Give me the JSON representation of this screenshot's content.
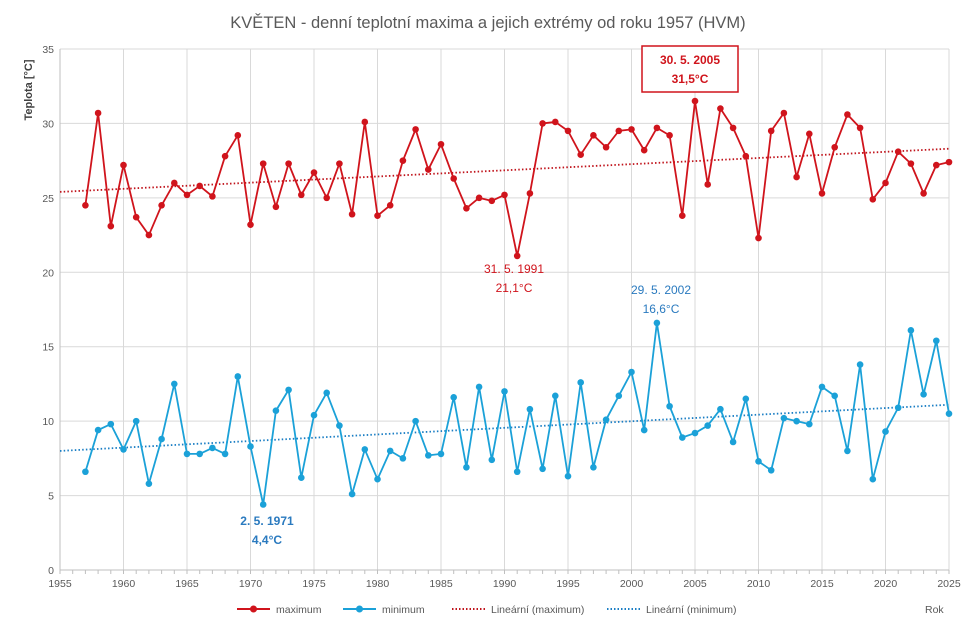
{
  "chart_data": {
    "type": "line",
    "title": "KVĚTEN - denní teplotní maxima a jejich extrémy od roku 1957 (HVM)",
    "ylabel": "Teplota [°C]",
    "xlabel": "Rok",
    "xlim": [
      1955,
      2025
    ],
    "ylim": [
      0,
      35
    ],
    "xticks": [
      1955,
      1960,
      1965,
      1970,
      1975,
      1980,
      1985,
      1990,
      1995,
      2000,
      2005,
      2010,
      2015,
      2020,
      2025
    ],
    "yticks": [
      0,
      5,
      10,
      15,
      20,
      25,
      30,
      35
    ],
    "grid": true,
    "legend_position": "bottom",
    "colors": {
      "maximum": "#d0141c",
      "minimum": "#1ba1d8",
      "annotation_blue": "#2a7abf"
    },
    "series": [
      {
        "name": "maximum",
        "x": [
          1957,
          1958,
          1959,
          1960,
          1961,
          1962,
          1963,
          1964,
          1965,
          1966,
          1967,
          1968,
          1969,
          1970,
          1971,
          1972,
          1973,
          1974,
          1975,
          1976,
          1977,
          1978,
          1979,
          1980,
          1981,
          1982,
          1983,
          1984,
          1985,
          1986,
          1987,
          1988,
          1989,
          1990,
          1991,
          1992,
          1993,
          1994,
          1995,
          1996,
          1997,
          1998,
          1999,
          2000,
          2001,
          2002,
          2003,
          2004,
          2005,
          2006,
          2007,
          2008,
          2009,
          2010,
          2011,
          2012,
          2013,
          2014,
          2015,
          2016,
          2017,
          2018,
          2019,
          2020,
          2021,
          2022,
          2023,
          2024,
          2025
        ],
        "values": [
          24.5,
          30.7,
          23.1,
          27.2,
          23.7,
          22.5,
          24.5,
          26.0,
          25.2,
          25.8,
          25.1,
          27.8,
          29.2,
          23.2,
          27.3,
          24.4,
          27.3,
          25.2,
          26.7,
          25.0,
          27.3,
          23.9,
          30.1,
          23.8,
          24.5,
          27.5,
          29.6,
          26.9,
          28.6,
          26.3,
          24.3,
          25.0,
          24.8,
          25.2,
          21.1,
          25.3,
          30.0,
          30.1,
          29.5,
          27.9,
          29.2,
          28.4,
          29.5,
          29.6,
          28.2,
          29.7,
          29.2,
          23.8,
          31.5,
          25.9,
          31.0,
          29.7,
          27.8,
          22.3,
          29.5,
          30.7,
          26.4,
          29.3,
          25.3,
          28.4,
          30.6,
          29.7,
          24.9,
          26.0,
          28.1,
          27.3,
          25.3,
          27.2,
          27.4
        ]
      },
      {
        "name": "minimum",
        "x": [
          1957,
          1958,
          1959,
          1960,
          1961,
          1962,
          1963,
          1964,
          1965,
          1966,
          1967,
          1968,
          1969,
          1970,
          1971,
          1972,
          1973,
          1974,
          1975,
          1976,
          1977,
          1978,
          1979,
          1980,
          1981,
          1982,
          1983,
          1984,
          1985,
          1986,
          1987,
          1988,
          1989,
          1990,
          1991,
          1992,
          1993,
          1994,
          1995,
          1996,
          1997,
          1998,
          1999,
          2000,
          2001,
          2002,
          2003,
          2004,
          2005,
          2006,
          2007,
          2008,
          2009,
          2010,
          2011,
          2012,
          2013,
          2014,
          2015,
          2016,
          2017,
          2018,
          2019,
          2020,
          2021,
          2022,
          2023,
          2024,
          2025
        ],
        "values": [
          6.6,
          9.4,
          9.8,
          8.1,
          10.0,
          5.8,
          8.8,
          12.5,
          7.8,
          7.8,
          8.2,
          7.8,
          13.0,
          8.3,
          4.4,
          10.7,
          12.1,
          6.2,
          10.4,
          11.9,
          9.7,
          5.1,
          8.1,
          6.1,
          8.0,
          7.5,
          10.0,
          7.7,
          7.8,
          11.6,
          6.9,
          12.3,
          7.4,
          12.0,
          6.6,
          10.8,
          6.8,
          11.7,
          6.3,
          12.6,
          6.9,
          10.1,
          11.7,
          13.3,
          9.4,
          16.6,
          11.0,
          8.9,
          9.2,
          9.7,
          10.8,
          8.6,
          11.5,
          7.3,
          6.7,
          10.2,
          10.0,
          9.8,
          12.3,
          11.7,
          8.0,
          13.8,
          6.1,
          9.3,
          10.9,
          16.1,
          11.8,
          15.4,
          10.5
        ]
      },
      {
        "name": "Lineární (maximum)",
        "x": [
          1955,
          2025
        ],
        "values": [
          25.4,
          28.3
        ]
      },
      {
        "name": "Lineární (minimum)",
        "x": [
          1955,
          2025
        ],
        "values": [
          8.0,
          11.1
        ]
      }
    ],
    "annotations": [
      {
        "id": "max-high",
        "date": "30. 5. 2005",
        "value": "31,5°C",
        "x": 2005,
        "y": 31.5,
        "color": "red",
        "boxed": true
      },
      {
        "id": "max-low",
        "date": "31. 5. 1991",
        "value": "21,1°C",
        "x": 1991,
        "y": 21.1,
        "color": "red",
        "boxed": false
      },
      {
        "id": "min-high",
        "date": "29. 5. 2002",
        "value": "16,6°C",
        "x": 2002,
        "y": 16.6,
        "color": "blue",
        "boxed": false
      },
      {
        "id": "min-low",
        "date": "2. 5. 1971",
        "value": "4,4°C",
        "x": 1971,
        "y": 4.4,
        "color": "blue",
        "boxed": false
      }
    ]
  }
}
